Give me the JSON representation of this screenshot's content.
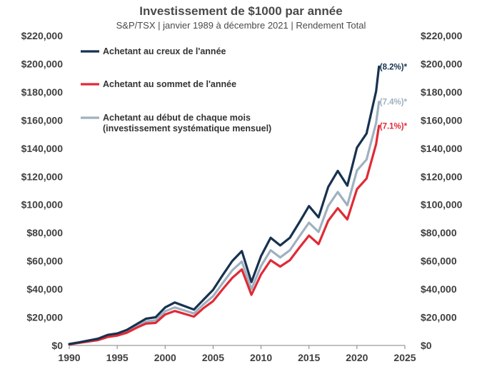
{
  "chart_data": {
    "type": "line",
    "title": "Investissement de $1000 par année",
    "subtitle": "S&P/TSX | janvier 1989 à décembre 2021 | Rendement Total",
    "xlim": [
      1990,
      2025
    ],
    "ylim": [
      0,
      220000
    ],
    "x_ticks": [
      "1990",
      "1995",
      "2000",
      "2005",
      "2010",
      "2015",
      "2020",
      "2025"
    ],
    "y_ticks": [
      "$0",
      "$20,000",
      "$40,000",
      "$60,000",
      "$80,000",
      "$100,000",
      "$120,000",
      "$140,000",
      "$160,000",
      "$180,000",
      "$200,000",
      "$220,000"
    ],
    "y_tick_values": [
      0,
      20000,
      40000,
      60000,
      80000,
      100000,
      120000,
      140000,
      160000,
      180000,
      200000,
      220000
    ],
    "grid": false,
    "legend_position": "top-left",
    "x": [
      1990,
      1991,
      1992,
      1993,
      1994,
      1995,
      1996,
      1997,
      1998,
      1999,
      2000,
      2001,
      2002,
      2003,
      2004,
      2005,
      2006,
      2007,
      2008,
      2009,
      2010,
      2011,
      2012,
      2013,
      2014,
      2015,
      2016,
      2017,
      2018,
      2019,
      2020,
      2021,
      2022,
      2022.3
    ],
    "series": [
      {
        "name": "Achetant au creux de l'année",
        "color": "#17324f",
        "end_label": "(8.2%)*",
        "values": [
          1000,
          2200,
          3500,
          4800,
          7500,
          8500,
          11000,
          15000,
          19000,
          20000,
          27000,
          30500,
          28000,
          25500,
          32500,
          39500,
          50000,
          60000,
          67000,
          45000,
          63500,
          76500,
          71000,
          76500,
          87500,
          99000,
          91000,
          112500,
          124000,
          113500,
          140500,
          150500,
          180500,
          198000
        ]
      },
      {
        "name": "Achetant au sommet de l'année",
        "color": "#e02a36",
        "end_label": "(7.1%)*",
        "values": [
          800,
          1800,
          2800,
          3800,
          6000,
          7000,
          9000,
          12500,
          15500,
          16000,
          22000,
          24500,
          22500,
          20500,
          26500,
          31500,
          40000,
          48000,
          54000,
          36000,
          50500,
          60500,
          56000,
          60500,
          69500,
          78000,
          72000,
          88500,
          97500,
          89500,
          111000,
          118500,
          143000,
          156000
        ]
      },
      {
        "name": "Achetant au début de chaque mois (investissement systématique mensuel)",
        "color": "#9fb1c0",
        "end_label": "(7.4%)*",
        "values": [
          900,
          2000,
          3100,
          4200,
          6700,
          7700,
          9900,
          13600,
          17100,
          17800,
          24300,
          27000,
          24900,
          22700,
          29200,
          35000,
          44300,
          53400,
          59600,
          40000,
          56400,
          67600,
          62500,
          67600,
          77500,
          87200,
          80600,
          99000,
          109000,
          99600,
          124300,
          132000,
          158000,
          173000
        ]
      }
    ],
    "legend": [
      {
        "label": "Achetant au creux de l'année",
        "color": "#17324f"
      },
      {
        "label": "Achetant au sommet de l'année",
        "color": "#e02a36"
      },
      {
        "label": "Achetant au début de chaque mois",
        "label2": "(investissement systématique mensuel)",
        "color": "#9fb1c0"
      }
    ]
  }
}
